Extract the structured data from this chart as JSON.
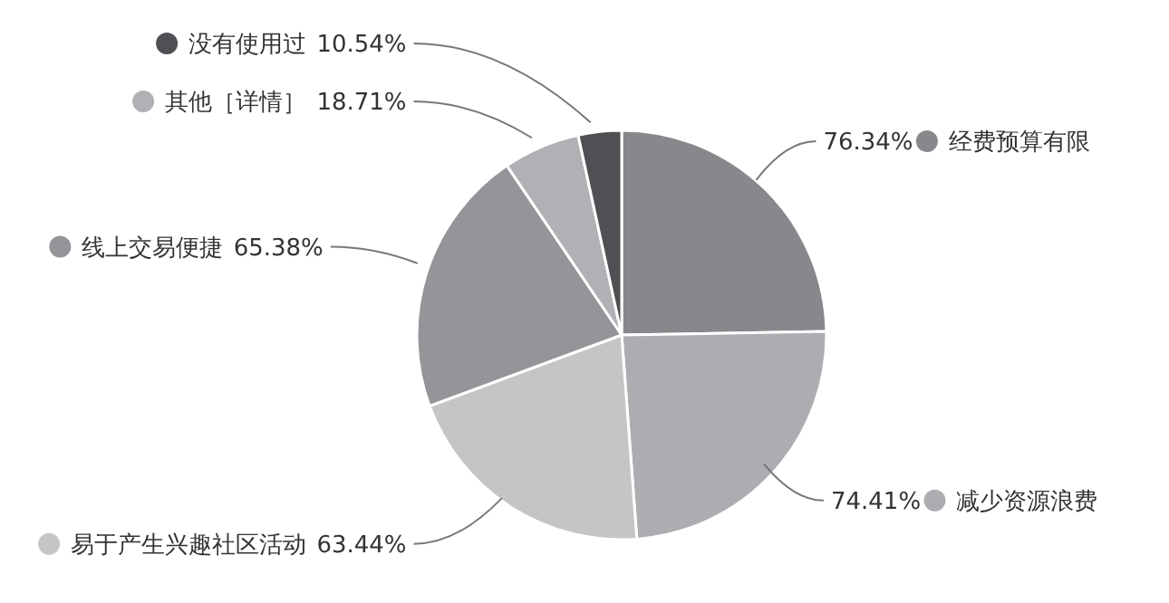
{
  "chart_data": {
    "type": "pie",
    "categories": [
      "经费预算有限",
      "减少资源浪费",
      "易于产生兴趣社区活动",
      "线上交易便捷",
      "其他［详情］",
      "没有使用过"
    ],
    "values": [
      76.34,
      74.41,
      63.44,
      65.38,
      18.71,
      10.54
    ],
    "value_labels": [
      "76.34%",
      "74.41%",
      "63.44%",
      "65.38%",
      "18.71%",
      "10.54%"
    ],
    "colors": [
      "#87888c",
      "#acadb0",
      "#c4c5c7",
      "#949598",
      "#b0b1b4",
      "#4f5053"
    ],
    "legend": "left"
  }
}
